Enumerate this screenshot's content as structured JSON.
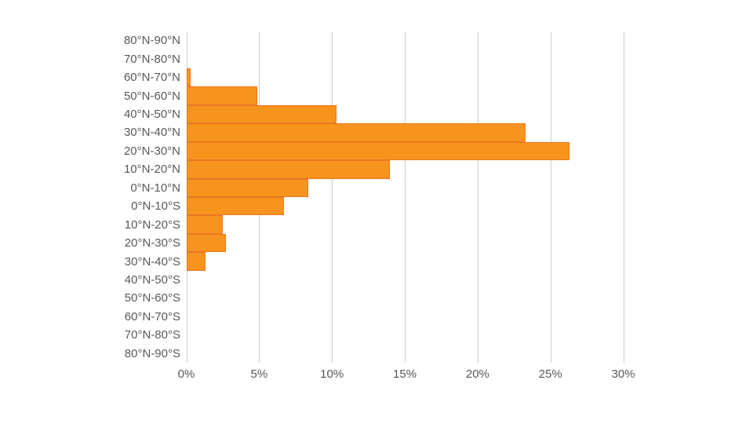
{
  "chart_data": {
    "type": "bar",
    "orientation": "horizontal",
    "title": "",
    "xlabel": "",
    "ylabel": "",
    "categories": [
      "80°N-90°N",
      "70°N-80°N",
      "60°N-70°N",
      "50°N-60°N",
      "40°N-50°N",
      "30°N-40°N",
      "20°N-30°N",
      "10°N-20°N",
      "0°N-10°N",
      "0°N-10°S",
      "10°N-20°S",
      "20°N-30°S",
      "30°N-40°S",
      "40°N-50°S",
      "50°N-60°S",
      "60°N-70°S",
      "70°N-80°S",
      "80°N-90°S"
    ],
    "values": [
      0,
      0,
      0.3,
      4.9,
      10.3,
      23.3,
      26.3,
      14.0,
      8.4,
      6.7,
      2.5,
      2.7,
      1.3,
      0,
      0,
      0,
      0,
      0
    ],
    "x_tick_labels": [
      "0%",
      "5%",
      "10%",
      "15%",
      "20%",
      "25%",
      "30%"
    ],
    "x_tick_values": [
      0,
      5,
      10,
      15,
      20,
      25,
      30
    ],
    "xlim": [
      0,
      30
    ],
    "grid": "vertical-only",
    "legend": "none",
    "colors": {
      "bar_fill": "#f7941e",
      "bar_border": "#eb7523",
      "gridline": "#cccccc",
      "label_text": "#595959",
      "background": "#ffffff"
    }
  }
}
